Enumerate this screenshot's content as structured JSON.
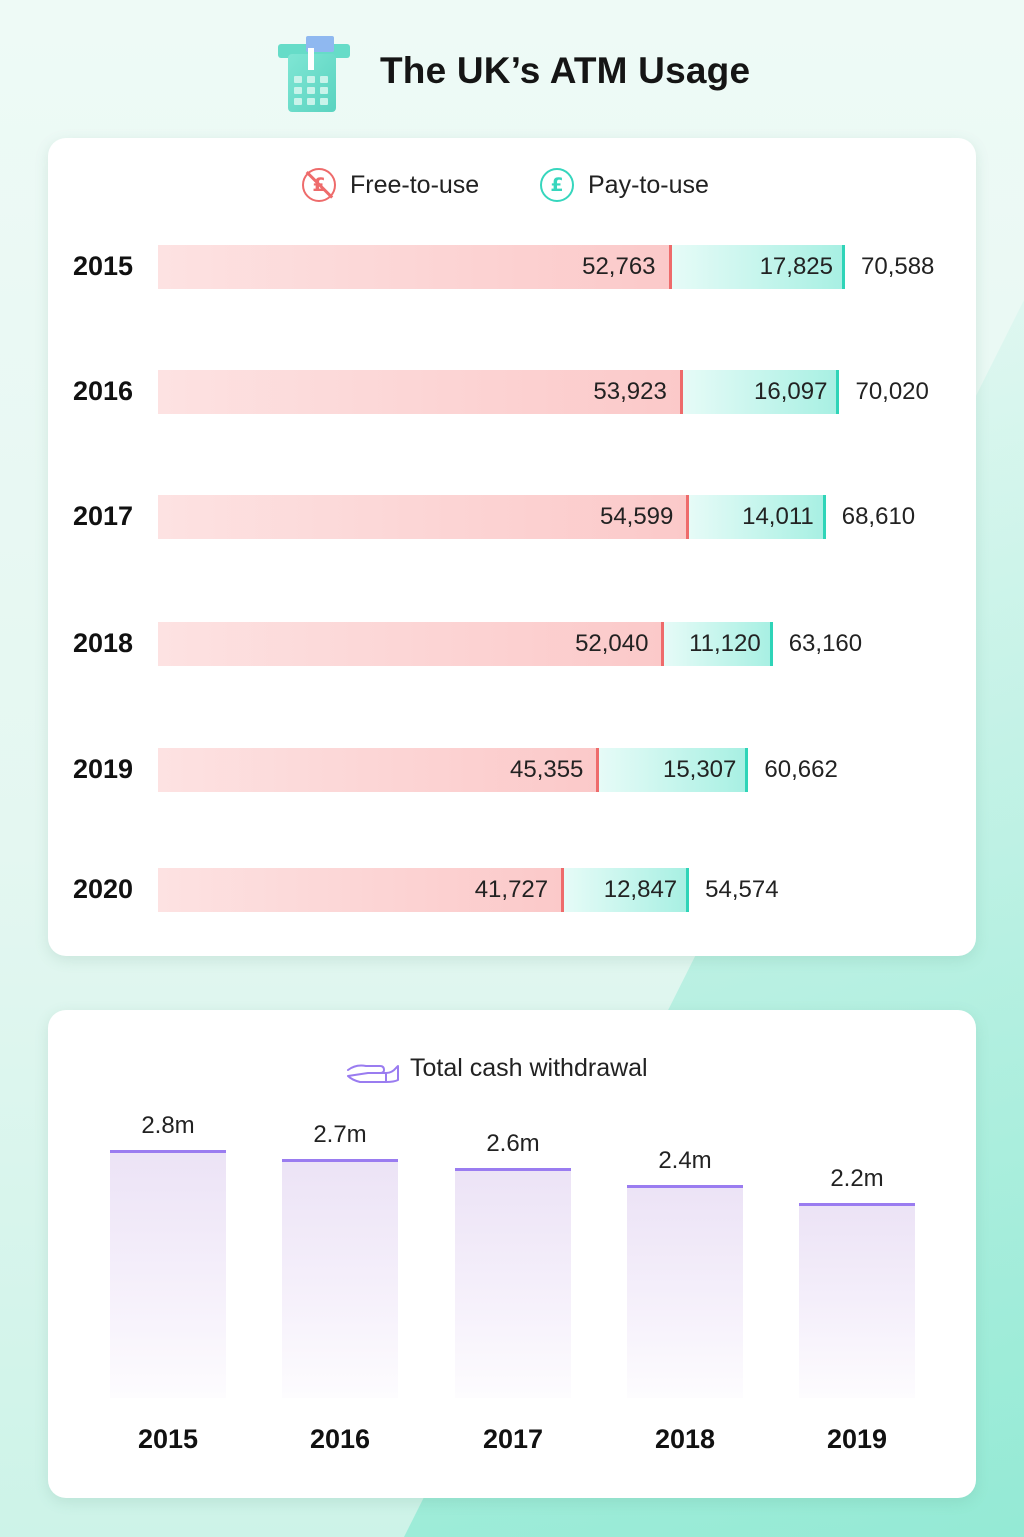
{
  "header": {
    "title": "The UK’s ATM Usage",
    "icon": "atm-icon"
  },
  "colors": {
    "free": "#ee6b6b",
    "pay": "#2fd4b8",
    "withdrawal": "#9a7cf0"
  },
  "legend": {
    "free_label": "Free-to-use",
    "free_icon_glyph": "£",
    "pay_label": "Pay-to-use",
    "pay_icon_glyph": "£"
  },
  "legend2": {
    "label": "Total cash withdrawal",
    "icon": "hand-icon"
  },
  "chart_data": [
    {
      "type": "bar",
      "orientation": "horizontal",
      "stacked": true,
      "title": "",
      "categories": [
        "2015",
        "2016",
        "2017",
        "2018",
        "2019",
        "2020"
      ],
      "series": [
        {
          "name": "Free-to-use",
          "values": [
            52763,
            53923,
            54599,
            52040,
            45355,
            41727
          ],
          "labels": [
            "52,763",
            "53,923",
            "54,599",
            "52,040",
            "45,355",
            "41,727"
          ]
        },
        {
          "name": "Pay-to-use",
          "values": [
            17825,
            16097,
            14011,
            11120,
            15307,
            12847
          ],
          "labels": [
            "17,825",
            "16,097",
            "14,011",
            "11,120",
            "15,307",
            "12,847"
          ]
        }
      ],
      "totals": [
        70588,
        70020,
        68610,
        63160,
        60662,
        54574
      ],
      "total_labels": [
        "70,588",
        "70,020",
        "68,610",
        "63,160",
        "60,662",
        "54,574"
      ],
      "legend": "top-center",
      "grid": false
    },
    {
      "type": "bar",
      "orientation": "vertical",
      "title": "",
      "categories": [
        "2015",
        "2016",
        "2017",
        "2018",
        "2019"
      ],
      "series": [
        {
          "name": "Total cash withdrawal",
          "values": [
            2.8,
            2.7,
            2.6,
            2.4,
            2.2
          ],
          "labels": [
            "2.8m",
            "2.7m",
            "2.6m",
            "2.4m",
            "2.2m"
          ]
        }
      ],
      "legend": "top-center",
      "grid": false
    }
  ]
}
